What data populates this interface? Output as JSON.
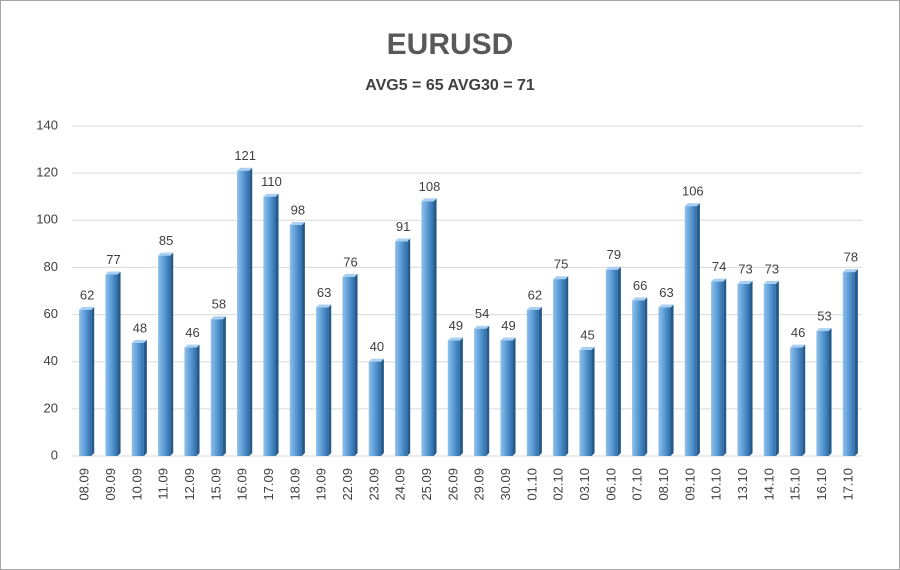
{
  "chart_data": {
    "type": "bar",
    "title": "EURUSD",
    "subtitle": "AVG5 = 65 AVG30 = 71",
    "categories": [
      "08.09",
      "09.09",
      "10.09",
      "11.09",
      "12.09",
      "15.09",
      "16.09",
      "17.09",
      "18.09",
      "19.09",
      "22.09",
      "23.09",
      "24.09",
      "25.09",
      "26.09",
      "29.09",
      "30.09",
      "01.10",
      "02.10",
      "03.10",
      "06.10",
      "07.10",
      "08.10",
      "09.10",
      "10.10",
      "13.10",
      "14.10",
      "15.10",
      "16.10",
      "17.10"
    ],
    "values": [
      62,
      77,
      48,
      85,
      46,
      58,
      121,
      110,
      98,
      63,
      76,
      40,
      91,
      108,
      49,
      54,
      49,
      62,
      75,
      45,
      79,
      66,
      63,
      106,
      74,
      73,
      73,
      46,
      53,
      78
    ],
    "color": "#5b9bd5",
    "ylim": [
      0,
      140
    ],
    "yticks": [
      0,
      20,
      40,
      60,
      80,
      100,
      120,
      140
    ],
    "grid": true
  }
}
